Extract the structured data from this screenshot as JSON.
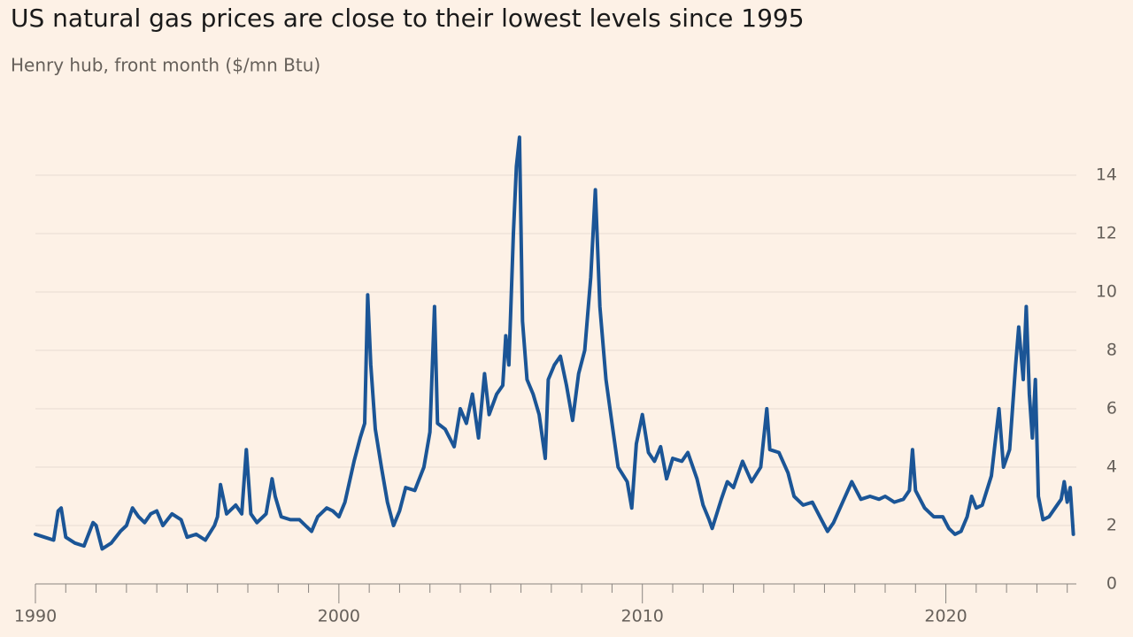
{
  "chart_data": {
    "type": "line",
    "title": "US natural gas prices are close to their lowest levels since 1995",
    "subtitle": "Henry hub, front month ($/mn Btu)",
    "color": "#1b5596",
    "x": [
      1990.0,
      1990.3,
      1990.6,
      1990.75,
      1990.85,
      1991.0,
      1991.3,
      1991.6,
      1991.9,
      1992.0,
      1992.2,
      1992.5,
      1992.8,
      1993.0,
      1993.2,
      1993.4,
      1993.6,
      1993.8,
      1994.0,
      1994.2,
      1994.5,
      1994.8,
      1995.0,
      1995.3,
      1995.6,
      1995.9,
      1996.0,
      1996.1,
      1996.3,
      1996.6,
      1996.8,
      1996.95,
      1997.1,
      1997.3,
      1997.6,
      1997.8,
      1997.9,
      1998.1,
      1998.4,
      1998.7,
      1998.9,
      1999.1,
      1999.3,
      1999.6,
      1999.8,
      2000.0,
      2000.2,
      2000.5,
      2000.7,
      2000.85,
      2000.95,
      2001.05,
      2001.2,
      2001.4,
      2001.6,
      2001.8,
      2002.0,
      2002.2,
      2002.5,
      2002.8,
      2003.0,
      2003.15,
      2003.25,
      2003.5,
      2003.8,
      2004.0,
      2004.2,
      2004.4,
      2004.6,
      2004.8,
      2004.95,
      2005.2,
      2005.4,
      2005.5,
      2005.6,
      2005.75,
      2005.85,
      2005.95,
      2006.05,
      2006.2,
      2006.4,
      2006.6,
      2006.8,
      2006.9,
      2007.1,
      2007.3,
      2007.5,
      2007.7,
      2007.9,
      2008.1,
      2008.3,
      2008.45,
      2008.6,
      2008.8,
      2009.0,
      2009.2,
      2009.5,
      2009.65,
      2009.8,
      2010.0,
      2010.2,
      2010.4,
      2010.6,
      2010.8,
      2011.0,
      2011.3,
      2011.5,
      2011.8,
      2012.0,
      2012.2,
      2012.3,
      2012.6,
      2012.8,
      2013.0,
      2013.3,
      2013.6,
      2013.9,
      2014.1,
      2014.2,
      2014.5,
      2014.8,
      2015.0,
      2015.3,
      2015.6,
      2015.9,
      2016.1,
      2016.3,
      2016.6,
      2016.9,
      2017.0,
      2017.2,
      2017.5,
      2017.8,
      2018.0,
      2018.3,
      2018.6,
      2018.8,
      2018.9,
      2019.0,
      2019.3,
      2019.6,
      2019.9,
      2020.1,
      2020.3,
      2020.5,
      2020.7,
      2020.85,
      2021.0,
      2021.2,
      2021.5,
      2021.75,
      2021.9,
      2022.1,
      2022.3,
      2022.4,
      2022.55,
      2022.65,
      2022.75,
      2022.85,
      2022.95,
      2023.05,
      2023.2,
      2023.4,
      2023.6,
      2023.8,
      2023.9,
      2024.0,
      2024.1,
      2024.2
    ],
    "values": [
      1.7,
      1.6,
      1.5,
      2.5,
      2.6,
      1.6,
      1.4,
      1.3,
      2.1,
      2.0,
      1.2,
      1.4,
      1.8,
      2.0,
      2.6,
      2.3,
      2.1,
      2.4,
      2.5,
      2.0,
      2.4,
      2.2,
      1.6,
      1.7,
      1.5,
      2.0,
      2.3,
      3.4,
      2.4,
      2.7,
      2.4,
      4.6,
      2.4,
      2.1,
      2.4,
      3.6,
      3.0,
      2.3,
      2.2,
      2.2,
      2.0,
      1.8,
      2.3,
      2.6,
      2.5,
      2.3,
      2.8,
      4.2,
      5.0,
      5.5,
      9.9,
      7.5,
      5.3,
      4.0,
      2.8,
      2.0,
      2.5,
      3.3,
      3.2,
      4.0,
      5.2,
      9.5,
      5.5,
      5.3,
      4.7,
      6.0,
      5.5,
      6.5,
      5.0,
      7.2,
      5.8,
      6.5,
      6.8,
      8.5,
      7.5,
      12.0,
      14.3,
      15.3,
      9.0,
      7.0,
      6.5,
      5.8,
      4.3,
      7.0,
      7.5,
      7.8,
      6.8,
      5.6,
      7.2,
      8.0,
      10.5,
      13.5,
      9.5,
      7.0,
      5.5,
      4.0,
      3.5,
      2.6,
      4.8,
      5.8,
      4.5,
      4.2,
      4.7,
      3.6,
      4.3,
      4.2,
      4.5,
      3.6,
      2.7,
      2.2,
      1.9,
      2.9,
      3.5,
      3.3,
      4.2,
      3.5,
      4.0,
      6.0,
      4.6,
      4.5,
      3.8,
      3.0,
      2.7,
      2.8,
      2.2,
      1.8,
      2.1,
      2.8,
      3.5,
      3.3,
      2.9,
      3.0,
      2.9,
      3.0,
      2.8,
      2.9,
      3.2,
      4.6,
      3.2,
      2.6,
      2.3,
      2.3,
      1.9,
      1.7,
      1.8,
      2.3,
      3.0,
      2.6,
      2.7,
      3.7,
      6.0,
      4.0,
      4.6,
      7.5,
      8.8,
      7.0,
      9.5,
      6.5,
      5.0,
      7.0,
      3.0,
      2.2,
      2.3,
      2.6,
      2.9,
      3.5,
      2.8,
      3.3,
      1.7
    ],
    "xlim": [
      1990,
      2024.3
    ],
    "xticks": [
      1990,
      2000,
      2010,
      2020
    ],
    "xminorticks": [
      1991,
      1992,
      1993,
      1994,
      1995,
      1996,
      1997,
      1998,
      1999,
      2001,
      2002,
      2003,
      2004,
      2005,
      2006,
      2007,
      2008,
      2009,
      2011,
      2012,
      2013,
      2014,
      2015,
      2016,
      2017,
      2018,
      2019,
      2021,
      2022,
      2023,
      2024
    ],
    "ylim": [
      0,
      16
    ],
    "yticks": [
      0,
      2,
      4,
      6,
      8,
      10,
      12,
      14
    ],
    "grid": true
  }
}
